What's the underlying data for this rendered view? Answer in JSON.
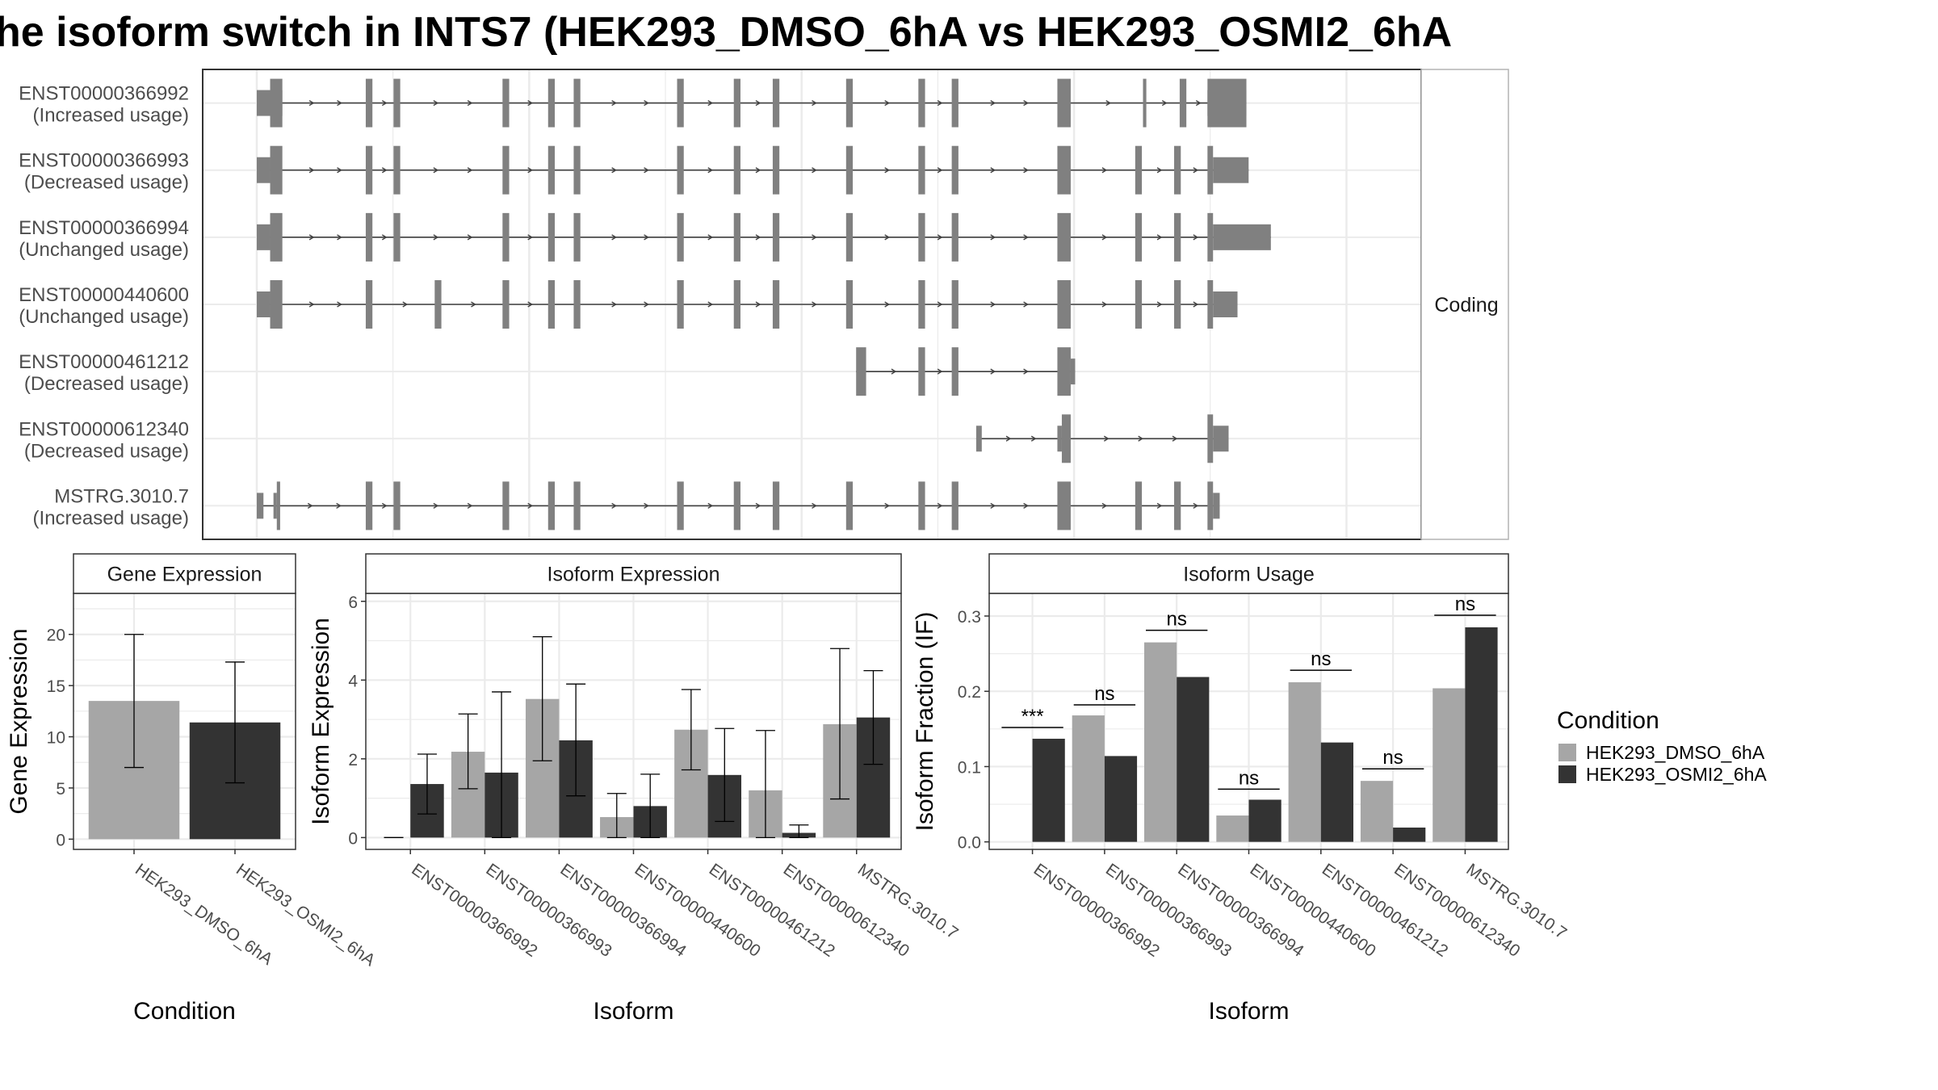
{
  "title": "he isoform switch in INTS7 (HEK293_DMSO_6hA vs HEK293_OSMI2_6hA",
  "colors": {
    "dmso": "#a6a6a6",
    "osmi": "#333333",
    "exon": "#808080",
    "intron": "#404040",
    "grid": "#ebebeb",
    "panel_border": "#333333",
    "strip_fill": "#ffffff",
    "strip_border": "#333333"
  },
  "chart_data": [
    {
      "type": "gene_structure",
      "strip_label": "Coding",
      "x_range": [
        0,
        1000
      ],
      "isoforms": [
        {
          "id": "ENST00000366992",
          "usage": "(Increased usage)",
          "exons": [
            [
              0,
              23,
              "utr"
            ],
            [
              12,
              23,
              "cds"
            ],
            [
              98,
              104,
              "cds"
            ],
            [
              123,
              129,
              "cds"
            ],
            [
              221,
              227,
              "cds"
            ],
            [
              262,
              268,
              "cds"
            ],
            [
              285,
              291,
              "cds"
            ],
            [
              378,
              384,
              "cds"
            ],
            [
              429,
              435,
              "cds"
            ],
            [
              464,
              470,
              "cds"
            ],
            [
              530,
              536,
              "cds"
            ],
            [
              595,
              601,
              "cds"
            ],
            [
              625,
              631,
              "cds"
            ],
            [
              720,
              732,
              "cds"
            ],
            [
              797,
              800,
              "cds"
            ],
            [
              830,
              836,
              "cds"
            ],
            [
              855,
              890,
              "cds"
            ],
            [
              855,
              860,
              "utr"
            ],
            [
              860,
              890,
              "utr"
            ]
          ],
          "cds_range": [
            12,
            860
          ],
          "tx_range": [
            0,
            890
          ]
        },
        {
          "id": "ENST00000366993",
          "usage": "(Decreased usage)",
          "exons": [
            [
              0,
              12,
              "utr"
            ],
            [
              12,
              23,
              "cds"
            ],
            [
              98,
              104,
              "cds"
            ],
            [
              123,
              129,
              "cds"
            ],
            [
              221,
              227,
              "cds"
            ],
            [
              262,
              268,
              "cds"
            ],
            [
              285,
              291,
              "cds"
            ],
            [
              378,
              384,
              "cds"
            ],
            [
              429,
              435,
              "cds"
            ],
            [
              464,
              470,
              "cds"
            ],
            [
              530,
              536,
              "cds"
            ],
            [
              595,
              601,
              "cds"
            ],
            [
              625,
              631,
              "cds"
            ],
            [
              720,
              732,
              "cds"
            ],
            [
              790,
              796,
              "cds"
            ],
            [
              825,
              831,
              "cds"
            ],
            [
              855,
              860,
              "cds"
            ],
            [
              860,
              892,
              "utr"
            ]
          ],
          "cds_range": [
            12,
            860
          ],
          "tx_range": [
            0,
            892
          ]
        },
        {
          "id": "ENST00000366994",
          "usage": "(Unchanged usage)",
          "exons": [
            [
              0,
              12,
              "utr"
            ],
            [
              12,
              23,
              "cds"
            ],
            [
              98,
              104,
              "cds"
            ],
            [
              123,
              129,
              "cds"
            ],
            [
              221,
              227,
              "cds"
            ],
            [
              262,
              268,
              "cds"
            ],
            [
              285,
              291,
              "cds"
            ],
            [
              378,
              384,
              "cds"
            ],
            [
              429,
              435,
              "cds"
            ],
            [
              464,
              470,
              "cds"
            ],
            [
              530,
              536,
              "cds"
            ],
            [
              595,
              601,
              "cds"
            ],
            [
              625,
              631,
              "cds"
            ],
            [
              720,
              732,
              "cds"
            ],
            [
              790,
              796,
              "cds"
            ],
            [
              825,
              831,
              "cds"
            ],
            [
              855,
              860,
              "cds"
            ],
            [
              860,
              912,
              "utr"
            ]
          ],
          "cds_range": [
            12,
            860
          ],
          "tx_range": [
            0,
            912
          ]
        },
        {
          "id": "ENST00000440600",
          "usage": "(Unchanged usage)",
          "exons": [
            [
              0,
              12,
              "utr"
            ],
            [
              12,
              23,
              "cds"
            ],
            [
              98,
              104,
              "cds"
            ],
            [
              160,
              166,
              "cds"
            ],
            [
              221,
              227,
              "cds"
            ],
            [
              262,
              268,
              "cds"
            ],
            [
              285,
              291,
              "cds"
            ],
            [
              378,
              384,
              "cds"
            ],
            [
              429,
              435,
              "cds"
            ],
            [
              464,
              470,
              "cds"
            ],
            [
              530,
              536,
              "cds"
            ],
            [
              595,
              601,
              "cds"
            ],
            [
              625,
              631,
              "cds"
            ],
            [
              720,
              732,
              "cds"
            ],
            [
              790,
              796,
              "cds"
            ],
            [
              825,
              831,
              "cds"
            ],
            [
              855,
              860,
              "cds"
            ],
            [
              860,
              882,
              "utr"
            ]
          ],
          "cds_range": [
            12,
            860
          ],
          "tx_range": [
            0,
            882
          ]
        },
        {
          "id": "ENST00000461212",
          "usage": "(Decreased usage)",
          "exons": [
            [
              539,
              548,
              "cds"
            ],
            [
              595,
              601,
              "cds"
            ],
            [
              625,
              631,
              "cds"
            ],
            [
              720,
              732,
              "cds"
            ],
            [
              732,
              736,
              "utr"
            ]
          ],
          "cds_range": [
            539,
            732
          ],
          "tx_range": [
            539,
            736
          ]
        },
        {
          "id": "ENST00000612340",
          "usage": "(Decreased usage)",
          "exons": [
            [
              647,
              652,
              "utr"
            ],
            [
              720,
              724,
              "utr"
            ],
            [
              724,
              732,
              "cds"
            ],
            [
              855,
              860,
              "cds"
            ],
            [
              860,
              874,
              "utr"
            ]
          ],
          "cds_range": [
            724,
            860
          ],
          "tx_range": [
            647,
            874
          ]
        },
        {
          "id": "MSTRG.3010.7",
          "usage": "(Increased usage)",
          "exons": [
            [
              0,
              6,
              "utr"
            ],
            [
              15,
              18,
              "utr"
            ],
            [
              18,
              21,
              "cds"
            ],
            [
              98,
              104,
              "cds"
            ],
            [
              123,
              129,
              "cds"
            ],
            [
              221,
              227,
              "cds"
            ],
            [
              262,
              268,
              "cds"
            ],
            [
              285,
              291,
              "cds"
            ],
            [
              378,
              384,
              "cds"
            ],
            [
              429,
              435,
              "cds"
            ],
            [
              464,
              470,
              "cds"
            ],
            [
              530,
              536,
              "cds"
            ],
            [
              595,
              601,
              "cds"
            ],
            [
              625,
              631,
              "cds"
            ],
            [
              720,
              732,
              "cds"
            ],
            [
              790,
              796,
              "cds"
            ],
            [
              825,
              831,
              "cds"
            ],
            [
              855,
              860,
              "cds"
            ],
            [
              860,
              866,
              "utr"
            ]
          ],
          "cds_range": [
            18,
            860
          ],
          "tx_range": [
            0,
            866
          ]
        }
      ]
    },
    {
      "type": "bar",
      "strip_label": "Gene Expression",
      "xlabel": "Condition",
      "ylabel": "Gene Expression",
      "ylim": [
        -1,
        24
      ],
      "yticks": [
        0,
        5,
        10,
        15,
        20
      ],
      "categories": [
        "HEK293_DMSO_6hA",
        "HEK293_OSMI2_6hA"
      ],
      "values": [
        13.5,
        11.4
      ],
      "error_low": [
        7.0,
        5.5
      ],
      "error_high": [
        20.0,
        17.3
      ]
    },
    {
      "type": "bar",
      "strip_label": "Isoform Expression",
      "xlabel": "Isoform",
      "ylabel": "Isoform Expression",
      "ylim": [
        -0.3,
        6.2
      ],
      "yticks": [
        0,
        2,
        4,
        6
      ],
      "categories": [
        "ENST00000366992",
        "ENST00000366993",
        "ENST00000366994",
        "ENST00000440600",
        "ENST00000461212",
        "ENST00000612340",
        "MSTRG.3010.7"
      ],
      "series": [
        {
          "name": "HEK293_DMSO_6hA",
          "values": [
            0.0,
            2.18,
            3.52,
            0.52,
            2.74,
            1.2,
            2.88
          ],
          "error_low": [
            0.0,
            1.24,
            1.95,
            0.0,
            1.72,
            0.0,
            0.98
          ],
          "error_high": [
            0.0,
            3.14,
            5.1,
            1.12,
            3.76,
            2.72,
            4.8
          ]
        },
        {
          "name": "HEK293_OSMI2_6hA",
          "values": [
            1.36,
            1.65,
            2.47,
            0.8,
            1.59,
            0.12,
            3.05
          ],
          "error_low": [
            0.6,
            0.0,
            1.06,
            0.0,
            0.41,
            0.0,
            1.86
          ],
          "error_high": [
            2.12,
            3.7,
            3.9,
            1.61,
            2.77,
            0.32,
            4.24
          ]
        }
      ]
    },
    {
      "type": "bar",
      "strip_label": "Isoform Usage",
      "xlabel": "Isoform",
      "ylabel": "Isoform Fraction (IF)",
      "ylim": [
        -0.01,
        0.33
      ],
      "yticks": [
        0.0,
        0.1,
        0.2,
        0.3
      ],
      "categories": [
        "ENST00000366992",
        "ENST00000366993",
        "ENST00000366994",
        "ENST00000440600",
        "ENST00000461212",
        "ENST00000612340",
        "MSTRG.3010.7"
      ],
      "series": [
        {
          "name": "HEK293_DMSO_6hA",
          "values": [
            0.0,
            0.168,
            0.265,
            0.035,
            0.212,
            0.081,
            0.204
          ]
        },
        {
          "name": "HEK293_OSMI2_6hA",
          "values": [
            0.137,
            0.114,
            0.219,
            0.056,
            0.132,
            0.019,
            0.285
          ]
        }
      ],
      "significance": [
        "***",
        "ns",
        "ns",
        "ns",
        "ns",
        "ns",
        "ns"
      ],
      "significance_y": [
        0.152,
        0.182,
        0.281,
        0.07,
        0.228,
        0.097,
        0.301
      ]
    }
  ],
  "legend": {
    "title": "Condition",
    "entries": [
      "HEK293_DMSO_6hA",
      "HEK293_OSMI2_6hA"
    ]
  }
}
